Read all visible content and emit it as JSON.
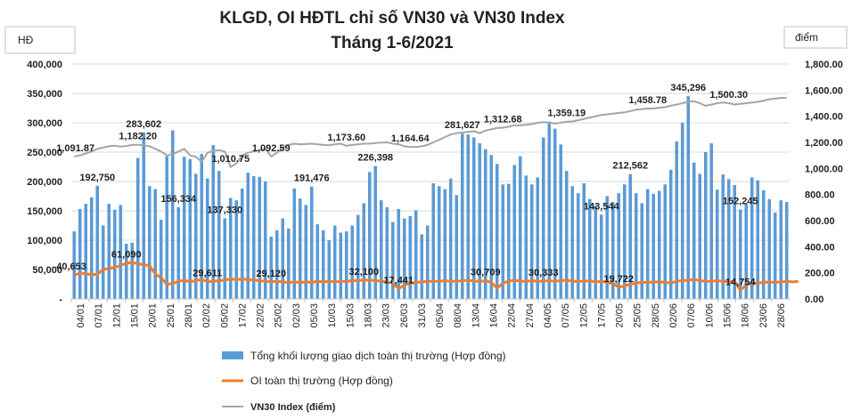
{
  "chart_data": {
    "type": "bar",
    "title_line1": "KLGD, OI HĐTL chỉ số VN30 và VN30 Index",
    "title_line2": "Tháng 1-6/2021",
    "left_unit": "HĐ",
    "right_unit": "điểm",
    "left_axis": {
      "min": 0,
      "max": 400000,
      "ticks": [
        "-",
        "50,000",
        "100,000",
        "150,000",
        "200,000",
        "250,000",
        "300,000",
        "350,000",
        "400,000"
      ]
    },
    "right_axis": {
      "min": 0,
      "max": 1800,
      "ticks": [
        "0.00",
        "200.00",
        "400.00",
        "600.00",
        "800.00",
        "1,000.00",
        "1,200.00",
        "1,400.00",
        "1,600.00",
        "1,800.00"
      ]
    },
    "x_ticks": [
      "04/01",
      "07/01",
      "12/01",
      "15/01",
      "20/01",
      "25/01",
      "28/01",
      "02/02",
      "05/02",
      "17/02",
      "22/02",
      "25/02",
      "02/03",
      "05/03",
      "10/03",
      "15/03",
      "18/03",
      "23/03",
      "26/03",
      "31/03",
      "05/04",
      "08/04",
      "13/04",
      "16/04",
      "22/04",
      "27/04",
      "04/05",
      "07/05",
      "12/05",
      "17/05",
      "20/05",
      "25/05",
      "28/05",
      "02/06",
      "07/06",
      "10/06",
      "15/06",
      "18/06",
      "23/06",
      "28/06"
    ],
    "colors": {
      "volume": "#5b9bd5",
      "oi": "#ed7d31",
      "index": "#a5a5a5"
    },
    "series": [
      {
        "name": "Tổng khối lượng giao dịch toàn thị trường (Hợp đồng)",
        "axis": "left",
        "kind": "bar",
        "values": [
          115000,
          153000,
          162000,
          173000,
          192750,
          125000,
          162000,
          152000,
          160000,
          94000,
          96000,
          240000,
          283602,
          192000,
          187000,
          135000,
          243000,
          287000,
          156334,
          242000,
          238000,
          213000,
          247000,
          205000,
          262000,
          218000,
          137330,
          172000,
          168000,
          188000,
          215000,
          209000,
          208000,
          200000,
          106000,
          117000,
          137000,
          120000,
          188000,
          171000,
          160000,
          191476,
          127000,
          117000,
          100000,
          125000,
          113000,
          115000,
          125000,
          143000,
          163000,
          216000,
          226398,
          168000,
          156000,
          131000,
          153000,
          137000,
          141000,
          151000,
          110000,
          125000,
          197000,
          192000,
          187000,
          205000,
          177000,
          281627,
          280000,
          275000,
          265000,
          255000,
          245000,
          230000,
          195000,
          196000,
          228000,
          243000,
          210000,
          195000,
          207000,
          275000,
          302000,
          290000,
          263000,
          218000,
          192000,
          180000,
          197000,
          170000,
          159000,
          143544,
          175000,
          165000,
          180000,
          195000,
          212562,
          180000,
          163000,
          187000,
          179000,
          184000,
          195000,
          220000,
          268000,
          300000,
          345296,
          232000,
          213000,
          250000,
          265000,
          186000,
          212000,
          204000,
          194000,
          152245,
          163000,
          207000,
          202000,
          185000,
          170000,
          147000,
          168000,
          165000
        ]
      },
      {
        "name": "OI toàn thị trường (Hợp đồng)",
        "axis": "left",
        "kind": "line",
        "values": [
          40653,
          44000,
          43000,
          41000,
          42000,
          50000,
          52000,
          54000,
          57000,
          61090,
          62000,
          60000,
          58000,
          57000,
          42000,
          36000,
          25000,
          26000,
          30000,
          32000,
          29000,
          31000,
          33000,
          29611,
          30000,
          31000,
          32000,
          34000,
          33000,
          34000,
          33000,
          32000,
          31000,
          30000,
          29120,
          30000,
          29000,
          28000,
          29000,
          28000,
          29000,
          28000,
          30000,
          29000,
          30000,
          29000,
          30000,
          30000,
          31000,
          31000,
          32100,
          32000,
          31000,
          30000,
          29000,
          27000,
          17441,
          24000,
          26000,
          28000,
          29000,
          30000,
          30000,
          30000,
          31000,
          30000,
          30000,
          31000,
          32000,
          30000,
          30000,
          30709,
          28000,
          18000,
          27000,
          30000,
          32000,
          30000,
          30000,
          31000,
          30000,
          30333,
          31000,
          30000,
          31000,
          32000,
          30000,
          30000,
          30000,
          31000,
          29000,
          30000,
          28000,
          26000,
          19722,
          22000,
          25000,
          27000,
          28000,
          28000,
          29000,
          29000,
          28000,
          27000,
          30000,
          31000,
          32000,
          33000,
          31000,
          30000,
          30000,
          31000,
          30000,
          29000,
          30000,
          14754,
          24000,
          26000,
          27000,
          28000,
          29000,
          28000,
          29000,
          30000,
          29000,
          30000
        ]
      },
      {
        "name": "VN30 Index (điểm)",
        "axis": "right",
        "kind": "line",
        "values": [
          1091.87,
          1100,
          1115,
          1130,
          1150,
          1160,
          1170,
          1175,
          1168,
          1172,
          1180,
          1182.2,
          1175,
          1170,
          1150,
          1130,
          1100,
          1110,
          1130,
          1150,
          1100,
          1090,
          1050,
          1120,
          1135,
          1140,
          1130,
          1010.75,
          1040,
          1100,
          1120,
          1130,
          1140,
          1150,
          1092.59,
          1120,
          1160,
          1180,
          1190,
          1185,
          1187,
          1190,
          1185,
          1180,
          1178,
          1185,
          1190,
          1173.6,
          1180,
          1185,
          1190,
          1190,
          1195,
          1198,
          1200,
          1190,
          1185,
          1170,
          1164.64,
          1165,
          1170,
          1180,
          1200,
          1220,
          1240,
          1260,
          1270,
          1275,
          1280,
          1285,
          1270,
          1290,
          1300,
          1310,
          1312.68,
          1320,
          1330,
          1330,
          1335,
          1340,
          1350,
          1355,
          1350,
          1345,
          1350,
          1359.19,
          1360,
          1370,
          1380,
          1390,
          1400,
          1410,
          1415,
          1420,
          1425,
          1430,
          1440,
          1450,
          1455,
          1458.78,
          1460,
          1465,
          1470,
          1480,
          1490,
          1500,
          1510,
          1515,
          1500,
          1480,
          1490,
          1500,
          1505,
          1500.3,
          1490,
          1495,
          1500,
          1505,
          1510,
          1520,
          1530,
          1535,
          1540,
          1540
        ]
      }
    ],
    "annotations": [
      {
        "series": 2,
        "index": 0,
        "text": "1,091.87"
      },
      {
        "series": 2,
        "index": 11,
        "text": "1,182.20"
      },
      {
        "series": 2,
        "index": 27,
        "text": "1,010.75"
      },
      {
        "series": 2,
        "index": 34,
        "text": "1,092.59"
      },
      {
        "series": 2,
        "index": 47,
        "text": "1,173.60"
      },
      {
        "series": 2,
        "index": 58,
        "text": "1,164.64"
      },
      {
        "series": 2,
        "index": 74,
        "text": "1,312.68"
      },
      {
        "series": 2,
        "index": 85,
        "text": "1,359.19"
      },
      {
        "series": 2,
        "index": 99,
        "text": "1,458.78"
      },
      {
        "series": 2,
        "index": 113,
        "text": "1,500.30"
      },
      {
        "series": 0,
        "index": 4,
        "text": "192,750"
      },
      {
        "series": 0,
        "index": 12,
        "text": "283,602"
      },
      {
        "series": 0,
        "index": 18,
        "text": "156,334"
      },
      {
        "series": 0,
        "index": 26,
        "text": "137,330"
      },
      {
        "series": 0,
        "index": 41,
        "text": "191,476"
      },
      {
        "series": 0,
        "index": 52,
        "text": "226,398"
      },
      {
        "series": 0,
        "index": 67,
        "text": "281,627"
      },
      {
        "series": 0,
        "index": 91,
        "text": "143,544"
      },
      {
        "series": 0,
        "index": 96,
        "text": "212,562"
      },
      {
        "series": 0,
        "index": 106,
        "text": "345,296"
      },
      {
        "series": 0,
        "index": 115,
        "text": "152,245"
      },
      {
        "series": 1,
        "index": 0,
        "text": "40,653"
      },
      {
        "series": 1,
        "index": 9,
        "text": "61,090"
      },
      {
        "series": 1,
        "index": 23,
        "text": "29,611"
      },
      {
        "series": 1,
        "index": 34,
        "text": "29,120"
      },
      {
        "series": 1,
        "index": 50,
        "text": "32,100"
      },
      {
        "series": 1,
        "index": 56,
        "text": "17,441"
      },
      {
        "series": 1,
        "index": 71,
        "text": "30,709"
      },
      {
        "series": 1,
        "index": 81,
        "text": "30,333"
      },
      {
        "series": 1,
        "index": 94,
        "text": "19,722"
      },
      {
        "series": 1,
        "index": 115,
        "text": "14,754"
      }
    ]
  },
  "legend": [
    {
      "label": "Tổng khối lượng giao dịch toàn thị trường (Hợp đồng)",
      "kind": "bar"
    },
    {
      "label": "OI toàn thị trường (Hợp đồng)",
      "kind": "line"
    },
    {
      "label": "VN30 Index (điểm)",
      "kind": "line"
    }
  ]
}
